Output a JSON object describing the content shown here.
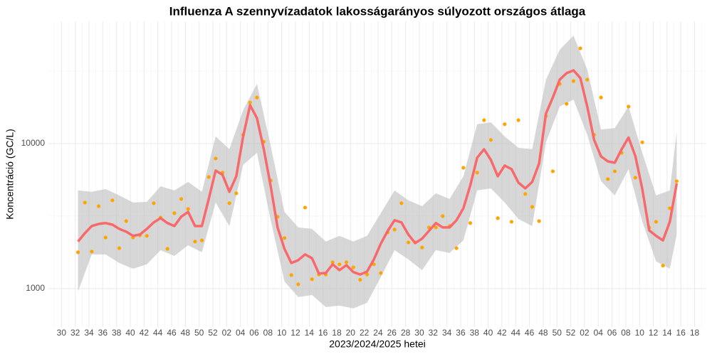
{
  "chart_data": {
    "type": "scatter-smooth",
    "title": "Influenza A szennyvízadatok lakosságarányos súlyozott országos átlaga",
    "x_label": "2023/2024/2025 hetei",
    "y_label": "Koncentráció (GC/L)",
    "log_y": true,
    "grid": true,
    "xlim": [
      -1.9,
      93.7
    ],
    "ylim": [
      543,
      69700
    ],
    "yticks": [
      1000,
      10000
    ],
    "xticks": [
      {
        "value": 0,
        "label": "30"
      },
      {
        "value": 2,
        "label": "32"
      },
      {
        "value": 4,
        "label": "34"
      },
      {
        "value": 6,
        "label": "36"
      },
      {
        "value": 8,
        "label": "38"
      },
      {
        "value": 10,
        "label": "40"
      },
      {
        "value": 12,
        "label": "42"
      },
      {
        "value": 14,
        "label": "44"
      },
      {
        "value": 16,
        "label": "46"
      },
      {
        "value": 18,
        "label": "48"
      },
      {
        "value": 20,
        "label": "50"
      },
      {
        "value": 22,
        "label": "52"
      },
      {
        "value": 24,
        "label": "02"
      },
      {
        "value": 26,
        "label": "04"
      },
      {
        "value": 28,
        "label": "06"
      },
      {
        "value": 30,
        "label": "08"
      },
      {
        "value": 32,
        "label": "10"
      },
      {
        "value": 34,
        "label": "12"
      },
      {
        "value": 36,
        "label": "14"
      },
      {
        "value": 38,
        "label": "16"
      },
      {
        "value": 40,
        "label": "18"
      },
      {
        "value": 42,
        "label": "20"
      },
      {
        "value": 44,
        "label": "22"
      },
      {
        "value": 46,
        "label": "24"
      },
      {
        "value": 48,
        "label": "26"
      },
      {
        "value": 50,
        "label": "28"
      },
      {
        "value": 52,
        "label": "30"
      },
      {
        "value": 54,
        "label": "32"
      },
      {
        "value": 56,
        "label": "34"
      },
      {
        "value": 58,
        "label": "36"
      },
      {
        "value": 60,
        "label": "38"
      },
      {
        "value": 62,
        "label": "40"
      },
      {
        "value": 64,
        "label": "42"
      },
      {
        "value": 66,
        "label": "44"
      },
      {
        "value": 68,
        "label": "46"
      },
      {
        "value": 70,
        "label": "48"
      },
      {
        "value": 72,
        "label": "50"
      },
      {
        "value": 74,
        "label": "52"
      },
      {
        "value": 76,
        "label": "02"
      },
      {
        "value": 78,
        "label": "04"
      },
      {
        "value": 80,
        "label": "06"
      },
      {
        "value": 82,
        "label": "08"
      },
      {
        "value": 84,
        "label": "10"
      },
      {
        "value": 86,
        "label": "12"
      },
      {
        "value": 88,
        "label": "14"
      },
      {
        "value": 90,
        "label": "16"
      },
      {
        "value": 92,
        "label": "18"
      }
    ],
    "x": [
      2.4,
      3.4,
      4.4,
      5.4,
      6.4,
      7.4,
      8.4,
      9.4,
      10.4,
      11.4,
      12.4,
      13.4,
      14.4,
      15.4,
      16.4,
      17.4,
      18.4,
      19.4,
      20.4,
      21.4,
      22.4,
      23.4,
      24.4,
      25.4,
      26.4,
      27.4,
      28.4,
      29.4,
      30.4,
      31.4,
      32.4,
      33.4,
      34.4,
      35.4,
      36.4,
      37.4,
      38.4,
      39.4,
      40.4,
      41.4,
      42.4,
      43.4,
      44.4,
      45.4,
      46.4,
      47.4,
      48.4,
      49.4,
      50.4,
      51.4,
      52.4,
      53.4,
      54.4,
      55.4,
      56.4,
      57.4,
      58.4,
      59.4,
      60.4,
      61.4,
      62.4,
      63.4,
      64.4,
      65.4,
      66.4,
      67.4,
      68.4,
      69.4,
      70.4,
      71.4,
      72.4,
      73.4,
      74.4,
      75.4,
      76.4,
      77.4,
      78.4,
      79.4,
      80.4,
      81.4,
      82.4,
      83.4,
      84.4,
      85.4,
      86.4,
      87.4,
      88.4,
      89.4
    ],
    "points": {
      "color": "#ffa500",
      "values": [
        1780,
        3920,
        1800,
        3700,
        2250,
        4060,
        1900,
        2920,
        2250,
        2330,
        2310,
        3880,
        3090,
        1880,
        3310,
        4150,
        3540,
        2110,
        2150,
        5880,
        7890,
        6300,
        3880,
        4540,
        11500,
        19200,
        20800,
        10300,
        5560,
        3130,
        2230,
        1240,
        1070,
        3620,
        1160,
        1250,
        1250,
        1520,
        1470,
        1520,
        1400,
        1150,
        1250,
        1470,
        1280,
        2440,
        2550,
        3880,
        2080,
        2080,
        1920,
        2640,
        2640,
        3160,
        2700,
        1900,
        6810,
        2830,
        6300,
        14500,
        10600,
        3060,
        13600,
        2890,
        14500,
        4490,
        3660,
        2920,
        15500,
        6440,
        25800,
        18800,
        27000,
        45400,
        27600,
        11500,
        20800,
        5690,
        6440,
        8630,
        18000,
        5820,
        10200,
        2640,
        2890,
        1440,
        3580,
        5500
      ]
    },
    "trend": {
      "color": "#f8696b",
      "values": [
        2110,
        2410,
        2700,
        2790,
        2830,
        2760,
        2580,
        2470,
        2310,
        2360,
        2580,
        2860,
        3060,
        2830,
        2700,
        3130,
        3380,
        2700,
        2700,
        4150,
        6520,
        6090,
        4650,
        5950,
        11200,
        18400,
        15000,
        9140,
        5080,
        2640,
        1880,
        1500,
        1570,
        1720,
        1620,
        1270,
        1280,
        1470,
        1340,
        1450,
        1300,
        1250,
        1310,
        1590,
        2040,
        2500,
        2960,
        2860,
        2360,
        2060,
        2210,
        2500,
        2830,
        2640,
        2640,
        2960,
        3580,
        5140,
        7980,
        9140,
        7710,
        5950,
        7050,
        6660,
        5380,
        4910,
        5440,
        7290,
        16100,
        20800,
        27600,
        30600,
        32000,
        28300,
        18000,
        10600,
        8160,
        7540,
        7380,
        9140,
        11000,
        8160,
        4860,
        2520,
        2310,
        2150,
        2890,
        5310
      ]
    },
    "band": {
      "color": "#bdbdbd",
      "x": [
        2.4,
        4.4,
        6.4,
        8.4,
        10.4,
        12.4,
        14.4,
        16.4,
        18.4,
        20.4,
        22.4,
        24.4,
        26.4,
        28.4,
        30.4,
        32.4,
        34.4,
        36.4,
        38.4,
        40.4,
        42.4,
        44.4,
        46.4,
        48.4,
        50.4,
        52.4,
        54.4,
        56.4,
        58.4,
        60.4,
        62.4,
        64.4,
        66.4,
        68.4,
        70.4,
        72.4,
        74.4,
        76.4,
        78.4,
        80.4,
        82.4,
        84.4,
        86.4,
        88.4,
        89.4
      ],
      "upper": [
        4750,
        4650,
        4860,
        4390,
        3920,
        3960,
        5080,
        4750,
        5440,
        4650,
        11200,
        9140,
        17000,
        25800,
        9670,
        3380,
        2640,
        2580,
        2110,
        2310,
        2110,
        2310,
        3310,
        4750,
        4060,
        3700,
        4540,
        4150,
        5950,
        13600,
        14000,
        11200,
        9350,
        9140,
        27600,
        44400,
        55600,
        32400,
        12500,
        12800,
        18000,
        8630,
        4390,
        4750,
        12100
      ],
      "lower": [
        956,
        1720,
        1720,
        1500,
        1370,
        1470,
        1840,
        1680,
        1990,
        1780,
        3920,
        2700,
        7130,
        8630,
        2960,
        1120,
        874,
        903,
        746,
        763,
        729,
        798,
        1200,
        1840,
        1590,
        1340,
        1840,
        1760,
        2150,
        4750,
        4910,
        3920,
        3020,
        2700,
        10200,
        18000,
        20100,
        11500,
        5500,
        4390,
        6660,
        2890,
        1540,
        1370,
        2360
      ]
    }
  }
}
